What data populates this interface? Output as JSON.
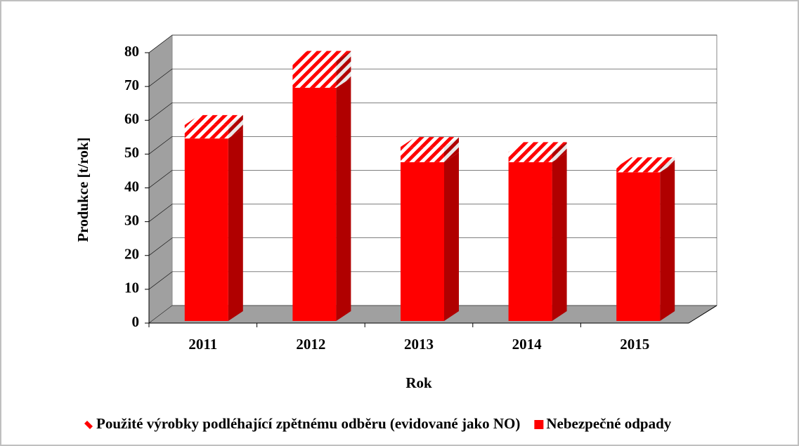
{
  "chart_data": {
    "type": "bar3d_stacked",
    "categories": [
      "2011",
      "2012",
      "2013",
      "2014",
      "2015"
    ],
    "series": [
      {
        "name": "Použité výrobky podléhající zpětnému odběru (evidované jako NO)",
        "color": "#ff0000",
        "pattern": "hatch",
        "values": [
          4,
          8,
          4.5,
          3,
          1.5
        ]
      },
      {
        "name": "Nebezpečné odpady",
        "color": "#ff0000",
        "values": [
          54,
          69,
          47,
          47,
          44
        ]
      }
    ],
    "stack_order": [
      1,
      0
    ],
    "y_label": "Produkce [t/rok]",
    "x_label": "Rok",
    "ylim": [
      0,
      80
    ],
    "yticks": [
      0,
      10,
      20,
      30,
      40,
      50,
      60,
      70,
      80
    ],
    "grid": true,
    "legend": "bottom"
  }
}
